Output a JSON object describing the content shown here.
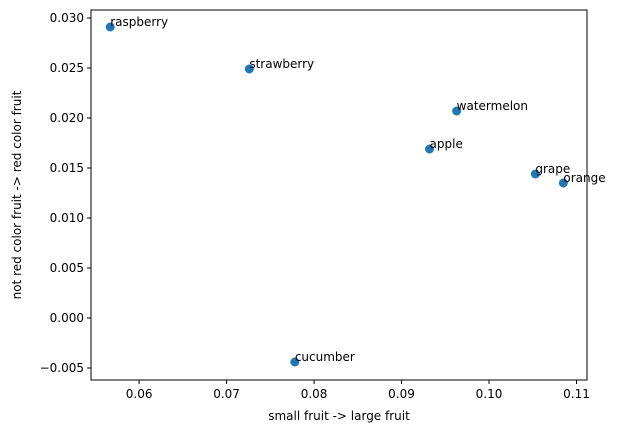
{
  "chart_data": {
    "type": "scatter",
    "title": "",
    "xlabel": "small fruit -> large fruit",
    "ylabel": "not red color fruit -> red color fruit",
    "xlim": [
      0.0545,
      0.1112
    ],
    "ylim": [
      -0.0062,
      0.0308
    ],
    "xticks": [
      0.06,
      0.07,
      0.08,
      0.09,
      0.1,
      0.11
    ],
    "xtick_labels": [
      "0.06",
      "0.07",
      "0.08",
      "0.09",
      "0.10",
      "0.11"
    ],
    "yticks": [
      -0.005,
      0.0,
      0.005,
      0.01,
      0.015,
      0.02,
      0.025,
      0.03
    ],
    "ytick_labels": [
      "−0.005",
      "0.000",
      "0.005",
      "0.010",
      "0.015",
      "0.020",
      "0.025",
      "0.030"
    ],
    "grid": false,
    "marker_color": "#1f77b4",
    "points": [
      {
        "label": "raspberry",
        "x": 0.0567,
        "y": 0.0291
      },
      {
        "label": "strawberry",
        "x": 0.0726,
        "y": 0.0249
      },
      {
        "label": "watermelon",
        "x": 0.0963,
        "y": 0.0207
      },
      {
        "label": "apple",
        "x": 0.0932,
        "y": 0.0169
      },
      {
        "label": "grape",
        "x": 0.1053,
        "y": 0.0144
      },
      {
        "label": "orange",
        "x": 0.1085,
        "y": 0.0135
      },
      {
        "label": "cucumber",
        "x": 0.0778,
        "y": -0.0044
      }
    ]
  }
}
